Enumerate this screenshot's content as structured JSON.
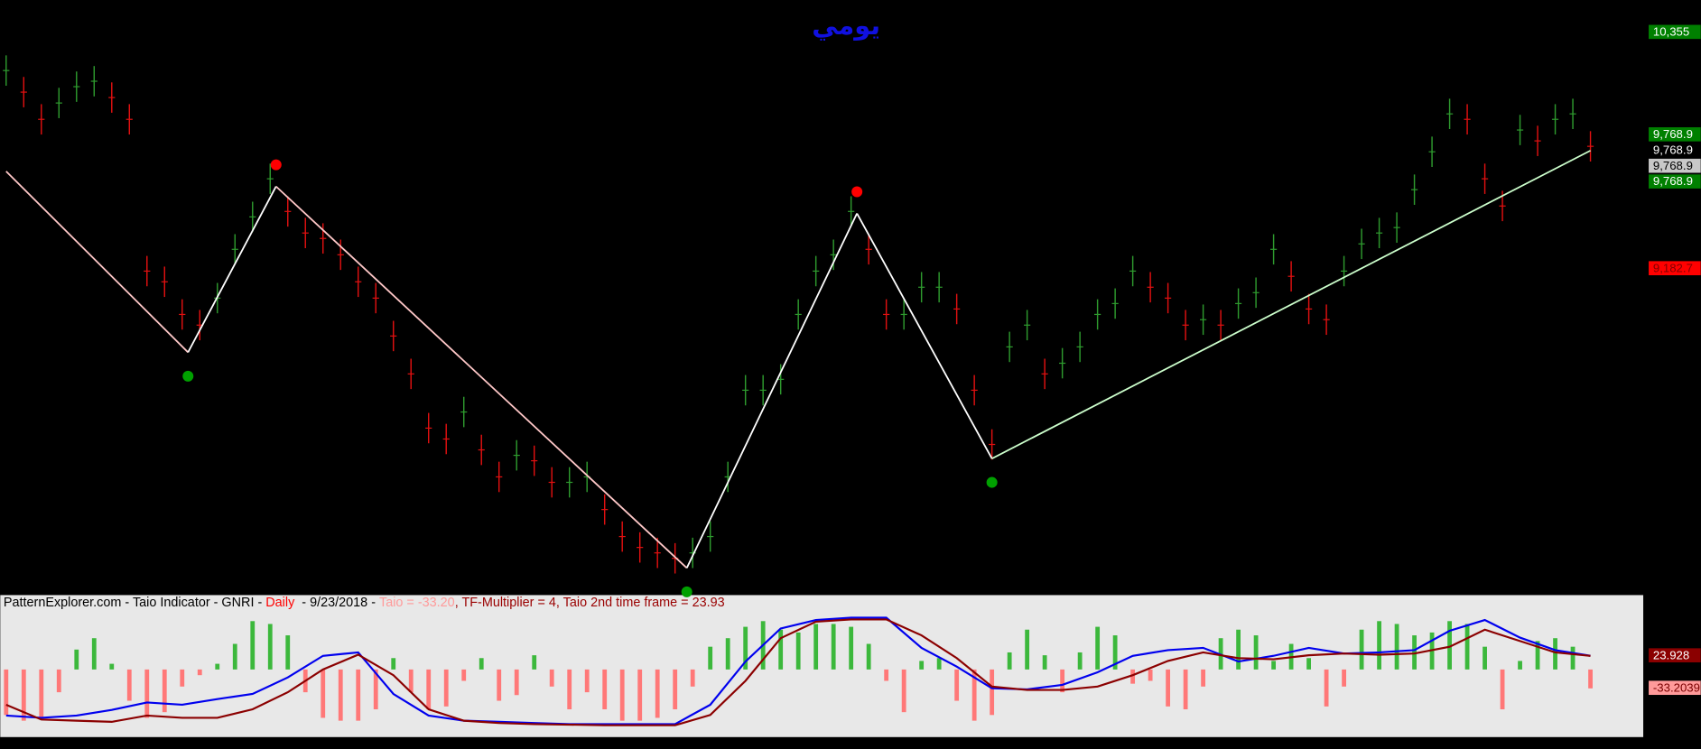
{
  "chart_data": [
    {
      "type": "stock",
      "title": "يومي",
      "title_color": "#1010e0",
      "x": [
        0,
        3,
        6,
        9,
        12,
        15,
        18,
        21,
        24,
        27,
        30,
        33,
        36,
        39,
        42,
        45,
        48,
        51,
        54,
        57,
        60,
        63,
        66,
        69,
        72,
        75,
        78,
        81,
        84,
        87,
        90,
        93,
        96,
        99,
        102,
        105,
        108,
        111,
        114,
        117,
        120,
        123,
        126,
        129,
        132,
        135,
        138,
        141,
        144,
        147,
        150,
        153,
        156,
        159,
        162,
        165,
        168,
        171,
        174,
        177,
        180,
        183,
        186,
        189,
        192,
        195,
        198,
        201,
        204,
        207,
        210,
        213,
        216,
        219,
        222,
        225,
        228,
        231,
        234,
        237,
        240,
        243,
        246,
        249,
        252,
        255,
        258,
        261,
        264,
        267,
        270
      ],
      "values": [
        10166,
        10059,
        9924,
        10005,
        10086,
        10113,
        10032,
        9924,
        9171,
        9118,
        8956,
        8903,
        9037,
        9279,
        9440,
        9629,
        9467,
        9360,
        9333,
        9252,
        9118,
        9037,
        8849,
        8661,
        8392,
        8338,
        8472,
        8284,
        8150,
        8257,
        8230,
        8123,
        8123,
        8150,
        7988,
        7854,
        7800,
        7773,
        7746,
        7773,
        7854,
        8150,
        8580,
        8580,
        8634,
        8956,
        9171,
        9252,
        9467,
        9279,
        8956,
        8956,
        9091,
        9091,
        8983,
        8580,
        8311,
        8795,
        8903,
        8661,
        8714,
        8795,
        8956,
        9010,
        9171,
        9091,
        9037,
        8903,
        8930,
        8903,
        9010,
        9064,
        9279,
        9145,
        8983,
        8930,
        9171,
        9306,
        9360,
        9387,
        9575,
        9763,
        9951,
        9924,
        9629,
        9494,
        9871,
        9817,
        9924,
        9951,
        9790
      ],
      "up_color": "#2e9a2e",
      "down_color": "#e01010",
      "xlim": [
        -1,
        279
      ],
      "ylim": [
        7569,
        10516
      ],
      "zigzag": {
        "x": [
          0,
          31,
          46,
          116,
          145,
          168,
          270
        ],
        "values": [
          9666,
          8768,
          9591,
          7698,
          9457,
          8241,
          9768.9
        ],
        "segment_colors": [
          "#ffc8c8",
          "#ffffff",
          "#ffc8c8",
          "#ffffff",
          "#ffffff",
          "#ccffcc"
        ]
      },
      "peak_color": "#ff0000",
      "trough_color": "#00a000",
      "price_labels": [
        {
          "value": 10355,
          "label": "10,355",
          "color": "#008000",
          "text_color": "#ffffff"
        },
        {
          "value": 9768.9,
          "label": "9,768.9",
          "color": "#008000",
          "text_color": "#ffffff"
        },
        {
          "value": 9768.9,
          "label": "9,768.9",
          "color": "#000000",
          "text_color": "#ffffff"
        },
        {
          "value": 9768.9,
          "label": "9,768.9",
          "color": "#c8c8c8",
          "text_color": "#000000"
        },
        {
          "value": 9768.9,
          "label": "9,768.9",
          "color": "#008000",
          "text_color": "#ffffff"
        },
        {
          "value": 9182.7,
          "label": "9,182.7",
          "color": "#ff0000",
          "text_color": "#800000"
        }
      ]
    },
    {
      "type": "combo",
      "header_parts": [
        {
          "text": "PatternExplorer.com - Taio Indicator - GNRI - ",
          "color": "#000000"
        },
        {
          "text": "Daily",
          "color": "#ff0000"
        },
        {
          "text": "  - 9/23/2018 - ",
          "color": "#000000"
        },
        {
          "text": "Taio = -33.20",
          "color": "#ff9a9a"
        },
        {
          "text": ", TF-Multiplier = 4, Taio 2nd time frame = 23.93",
          "color": "#9a0000"
        }
      ],
      "x": [
        0,
        3,
        6,
        9,
        12,
        15,
        18,
        21,
        24,
        27,
        30,
        33,
        36,
        39,
        42,
        45,
        48,
        51,
        54,
        57,
        60,
        63,
        66,
        69,
        72,
        75,
        78,
        81,
        84,
        87,
        90,
        93,
        96,
        99,
        102,
        105,
        108,
        111,
        114,
        117,
        120,
        123,
        126,
        129,
        132,
        135,
        138,
        141,
        144,
        147,
        150,
        153,
        156,
        159,
        162,
        165,
        168,
        171,
        174,
        177,
        180,
        183,
        186,
        189,
        192,
        195,
        198,
        201,
        204,
        207,
        210,
        213,
        216,
        219,
        222,
        225,
        228,
        231,
        234,
        237,
        240,
        243,
        246,
        249,
        252,
        255,
        258,
        261,
        264,
        267,
        270
      ],
      "values": [
        -80,
        -90,
        -85,
        -40,
        35,
        55,
        10,
        -55,
        -85,
        -75,
        -30,
        -10,
        10,
        45,
        85,
        80,
        60,
        -40,
        -85,
        -90,
        -90,
        -70,
        20,
        -40,
        -70,
        -65,
        -20,
        20,
        -55,
        -45,
        25,
        -30,
        -70,
        -40,
        -70,
        -90,
        -90,
        -85,
        -70,
        -30,
        40,
        55,
        75,
        85,
        70,
        65,
        80,
        80,
        75,
        45,
        -20,
        -75,
        15,
        20,
        -55,
        -90,
        -80,
        30,
        70,
        25,
        -40,
        30,
        75,
        60,
        -25,
        -20,
        -65,
        -70,
        -30,
        55,
        70,
        60,
        15,
        45,
        20,
        -65,
        -30,
        70,
        85,
        80,
        60,
        65,
        85,
        80,
        40,
        -70,
        15,
        50,
        55,
        40,
        -33.2039
      ],
      "pos_color": "#3cb83c",
      "neg_color": "#ff7878",
      "series": [
        {
          "color": "#0000ee",
          "x": [
            0,
            6,
            12,
            18,
            24,
            30,
            36,
            42,
            48,
            54,
            60,
            66,
            72,
            78,
            84,
            90,
            96,
            102,
            108,
            114,
            120,
            126,
            132,
            138,
            144,
            150,
            156,
            162,
            168,
            174,
            180,
            186,
            192,
            198,
            204,
            210,
            216,
            222,
            228,
            234,
            240,
            246,
            252,
            258,
            264,
            270
          ],
          "values": [
            -81,
            -85,
            -81,
            -71,
            -58,
            -62,
            -52,
            -43,
            -14,
            24,
            30,
            -43,
            -81,
            -90,
            -92,
            -94,
            -96,
            -96,
            -96,
            -96,
            -62,
            14,
            72,
            87,
            91,
            91,
            38,
            5,
            -33,
            -35,
            -27,
            -5,
            24,
            34,
            38,
            14,
            24,
            38,
            28,
            30,
            34,
            68,
            87,
            56,
            34,
            24
          ]
        },
        {
          "color": "#8b0000",
          "x": [
            0,
            6,
            12,
            18,
            24,
            30,
            36,
            42,
            48,
            54,
            60,
            66,
            72,
            78,
            84,
            90,
            96,
            102,
            108,
            114,
            120,
            126,
            132,
            138,
            144,
            150,
            156,
            162,
            168,
            174,
            180,
            186,
            192,
            198,
            204,
            210,
            216,
            222,
            228,
            234,
            240,
            246,
            252,
            258,
            264,
            270
          ],
          "values": [
            -62,
            -88,
            -90,
            -92,
            -81,
            -85,
            -85,
            -70,
            -40,
            0,
            26,
            -10,
            -70,
            -90,
            -94,
            -96,
            -97,
            -98,
            -98,
            -98,
            -80,
            -20,
            55,
            84,
            88,
            88,
            60,
            20,
            -30,
            -36,
            -36,
            -30,
            -10,
            15,
            30,
            20,
            18,
            25,
            28,
            26,
            28,
            40,
            70,
            50,
            30,
            23.928
          ]
        }
      ],
      "xlim": [
        -1,
        279
      ],
      "ylim": [
        -115,
        106
      ],
      "price_labels": [
        {
          "value": 23.928,
          "label": "23.928",
          "color": "#8b0000",
          "text_color": "#ffffff"
        },
        {
          "value": -33.2039,
          "label": "-33.2039",
          "color": "#ff9a9a",
          "text_color": "#7a0000"
        }
      ]
    }
  ]
}
